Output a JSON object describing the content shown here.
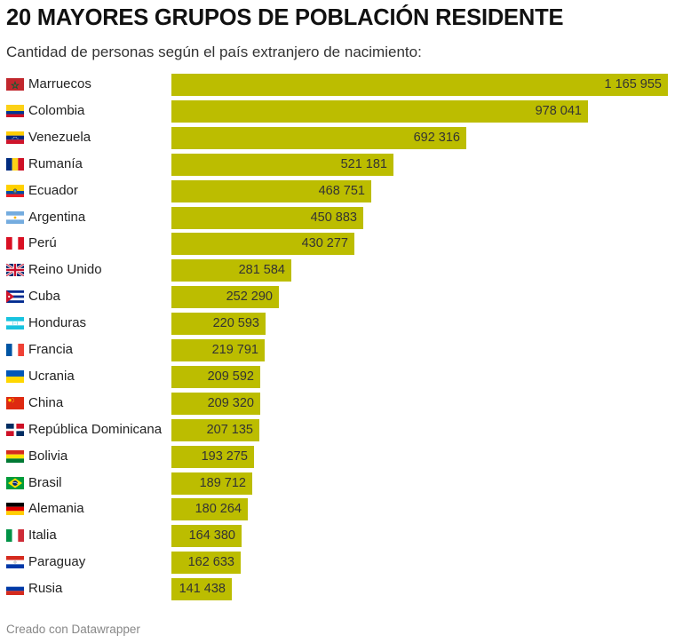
{
  "header": {
    "title": "20 MAYORES GRUPOS DE POBLACIÓN RESIDENTE",
    "subtitle": "Cantidad de personas según el país extranjero de nacimiento:"
  },
  "footer": {
    "credit": "Creado con Datawrapper"
  },
  "colors": {
    "bar": "#bcbd00"
  },
  "chart_data": {
    "type": "bar",
    "orientation": "horizontal",
    "title": "20 MAYORES GRUPOS DE POBLACIÓN RESIDENTE",
    "subtitle": "Cantidad de personas según el país extranjero de nacimiento:",
    "categories": [
      "Marruecos",
      "Colombia",
      "Venezuela",
      "Rumanía",
      "Ecuador",
      "Argentina",
      "Perú",
      "Reino Unido",
      "Cuba",
      "Honduras",
      "Francia",
      "Ucrania",
      "China",
      "República Dominicana",
      "Bolivia",
      "Brasil",
      "Alemania",
      "Italia",
      "Paraguay",
      "Rusia"
    ],
    "values": [
      1165955,
      978041,
      692316,
      521181,
      468751,
      450883,
      430277,
      281584,
      252290,
      220593,
      219791,
      209592,
      209320,
      207135,
      193275,
      189712,
      180264,
      164380,
      162633,
      141438
    ],
    "value_labels": [
      "1 165 955",
      "978 041",
      "692 316",
      "521 181",
      "468 751",
      "450 883",
      "430 277",
      "281 584",
      "252 290",
      "220 593",
      "219 791",
      "209 592",
      "209 320",
      "207 135",
      "193 275",
      "189 712",
      "180 264",
      "164 380",
      "162 633",
      "141 438"
    ],
    "flags": [
      "morocco-flag-icon",
      "colombia-flag-icon",
      "venezuela-flag-icon",
      "romania-flag-icon",
      "ecuador-flag-icon",
      "argentina-flag-icon",
      "peru-flag-icon",
      "united-kingdom-flag-icon",
      "cuba-flag-icon",
      "honduras-flag-icon",
      "france-flag-icon",
      "ukraine-flag-icon",
      "china-flag-icon",
      "dominican-republic-flag-icon",
      "bolivia-flag-icon",
      "brazil-flag-icon",
      "germany-flag-icon",
      "italy-flag-icon",
      "paraguay-flag-icon",
      "russia-flag-icon"
    ],
    "xlabel": "",
    "ylabel": "",
    "xlim": [
      0,
      1165955
    ],
    "grid": false,
    "legend": "none"
  }
}
